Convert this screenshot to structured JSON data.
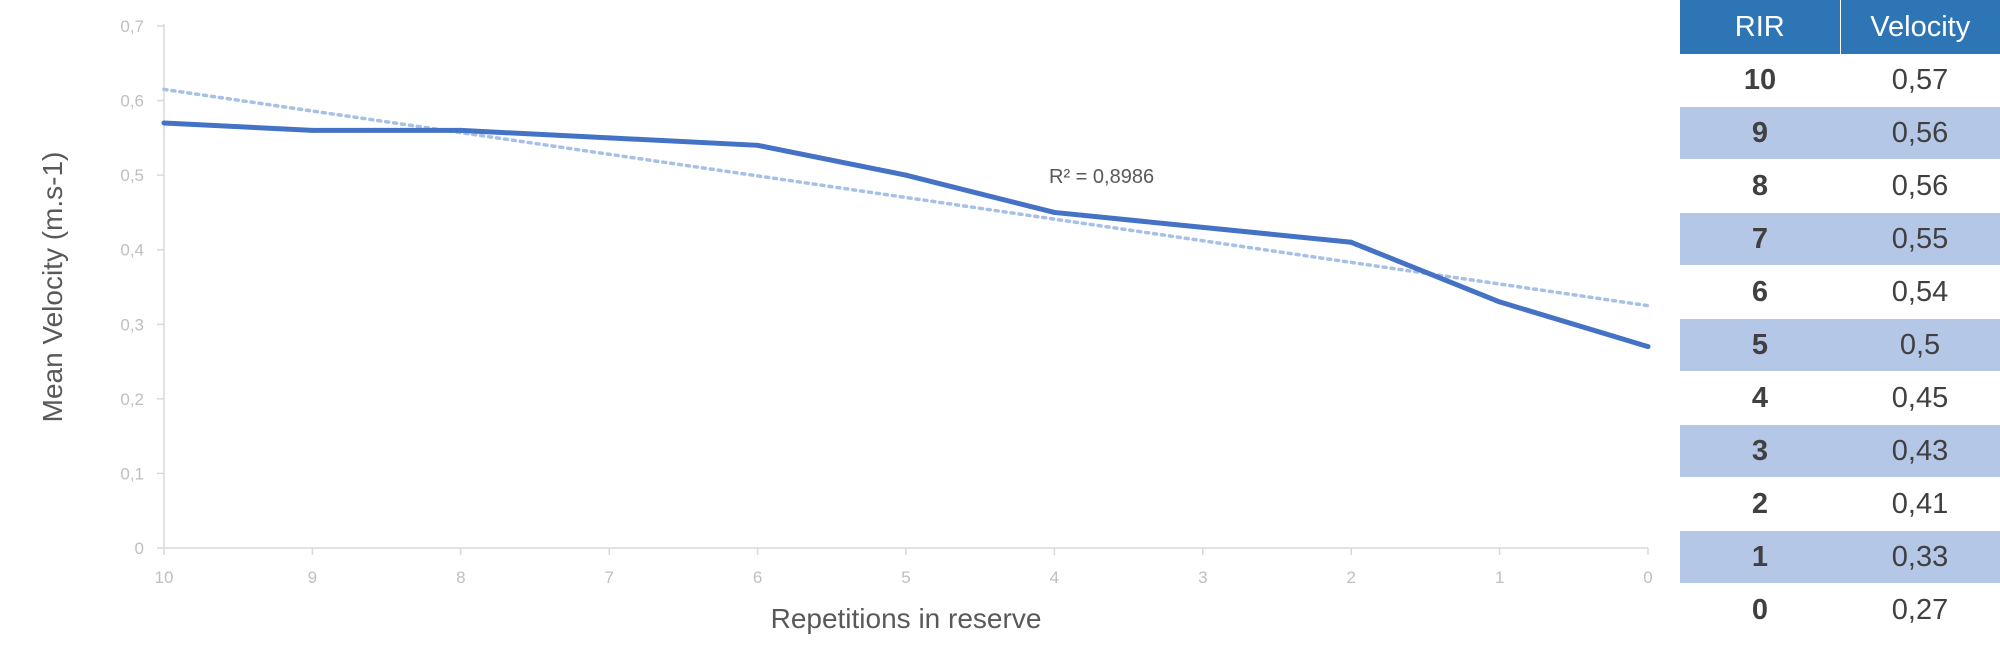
{
  "chart_data": {
    "type": "line",
    "xlabel": "Repetitions in reserve",
    "ylabel": "Mean Velocity (m.s-1)",
    "x": [
      10,
      9,
      8,
      7,
      6,
      5,
      4,
      3,
      2,
      1,
      0
    ],
    "x_tick_labels": [
      "10",
      "9",
      "8",
      "7",
      "6",
      "5",
      "4",
      "3",
      "2",
      "1",
      "0"
    ],
    "y_tick_labels": [
      "0",
      "0,1",
      "0,2",
      "0,3",
      "0,4",
      "0,5",
      "0,6",
      "0,7"
    ],
    "ylim": [
      0,
      0.7
    ],
    "x_reversed": true,
    "series": [
      {
        "values": [
          0.57,
          0.56,
          0.56,
          0.55,
          0.54,
          0.5,
          0.45,
          0.43,
          0.41,
          0.33,
          0.27
        ],
        "color": "#4472c4"
      }
    ],
    "trendline": {
      "type": "linear",
      "start": 0.615,
      "end": 0.325,
      "color": "#a9c0e6",
      "label": "R² = 0,8986"
    },
    "legend": "none",
    "grid": false
  },
  "table": {
    "headers": [
      "RIR",
      "Velocity"
    ],
    "rows": [
      [
        "10",
        "0,57"
      ],
      [
        "9",
        "0,56"
      ],
      [
        "8",
        "0,56"
      ],
      [
        "7",
        "0,55"
      ],
      [
        "6",
        "0,54"
      ],
      [
        "5",
        "0,5"
      ],
      [
        "4",
        "0,45"
      ],
      [
        "3",
        "0,43"
      ],
      [
        "2",
        "0,41"
      ],
      [
        "1",
        "0,33"
      ],
      [
        "0",
        "0,27"
      ]
    ]
  }
}
